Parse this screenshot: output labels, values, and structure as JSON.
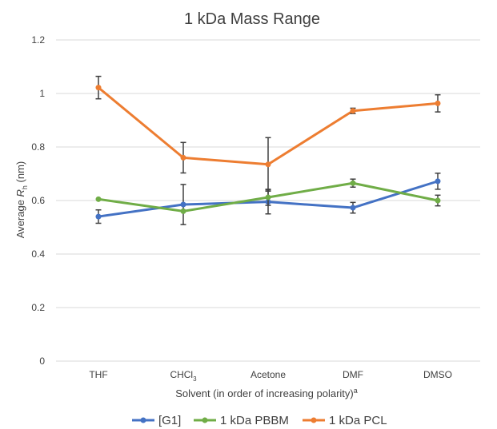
{
  "chart_data": {
    "type": "line",
    "title": "1 kDa Mass Range",
    "xlabel": "Solvent (in order of increasing polarity)",
    "xlabel_superscript": "a",
    "ylabel_prefix": "Average ",
    "ylabel_italic": "R",
    "ylabel_sub": "h",
    "ylabel_suffix": " (nm)",
    "categories": [
      {
        "label": "THF",
        "sub": ""
      },
      {
        "label": "CHCl",
        "sub": "3"
      },
      {
        "label": "Acetone",
        "sub": ""
      },
      {
        "label": "DMF",
        "sub": ""
      },
      {
        "label": "DMSO",
        "sub": ""
      }
    ],
    "ylim": [
      0,
      1.2
    ],
    "yticks": [
      "0",
      "0.2",
      "0.4",
      "0.6",
      "0.8",
      "1",
      "1.2"
    ],
    "grid": true,
    "legend_position": "bottom",
    "series": [
      {
        "name": "[G1]",
        "color": "#4472c4",
        "values": [
          0.54,
          0.585,
          0.595,
          0.573,
          0.672
        ],
        "errors": [
          0.025,
          0.075,
          0.045,
          0.02,
          0.03
        ]
      },
      {
        "name": "1 kDa PBBM",
        "color": "#70ad47",
        "values": [
          0.605,
          0.56,
          0.612,
          0.665,
          0.6
        ],
        "errors": [
          0.0,
          0.0,
          0.03,
          0.015,
          0.02
        ]
      },
      {
        "name": "1 kDa PCL",
        "color": "#ed7d31",
        "values": [
          1.022,
          0.76,
          0.735,
          0.935,
          0.963
        ],
        "errors": [
          0.042,
          0.057,
          0.1,
          0.01,
          0.032
        ]
      }
    ]
  }
}
